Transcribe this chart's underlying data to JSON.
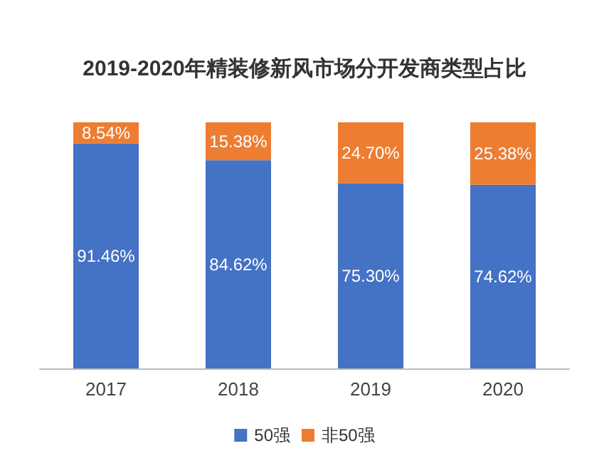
{
  "chart_data": {
    "type": "bar",
    "title": "2019-2020年精装修新风市场分开发商类型占比",
    "categories": [
      "2017",
      "2018",
      "2019",
      "2020"
    ],
    "stacked": true,
    "legend": "bottom",
    "series": [
      {
        "name": "50强",
        "color": "#4472c4",
        "values": [
          91.46,
          84.62,
          75.3,
          74.62
        ],
        "value_labels": [
          "91.46%",
          "84.62%",
          "75.30%",
          "74.62%"
        ]
      },
      {
        "name": "非50强",
        "color": "#ed7d31",
        "values": [
          8.54,
          15.38,
          24.7,
          25.38
        ],
        "value_labels": [
          "8.54%",
          "15.38%",
          "24.70%",
          "25.38%"
        ]
      }
    ]
  }
}
